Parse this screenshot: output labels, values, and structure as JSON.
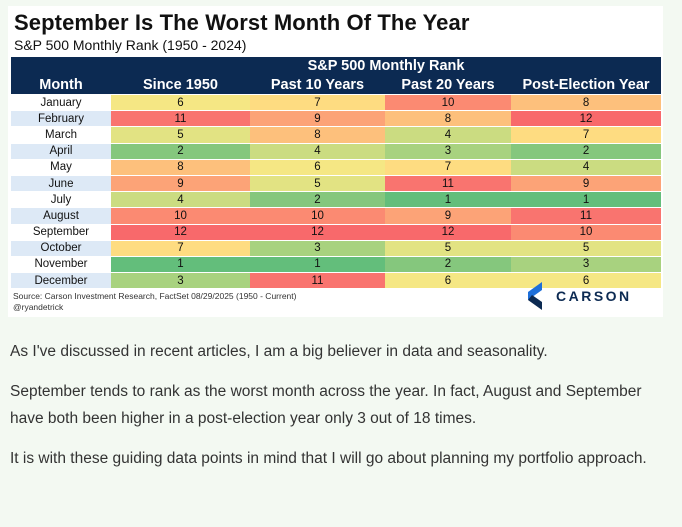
{
  "figure": {
    "title": "September Is The Worst Month Of The Year",
    "subtitle": "S&P 500 Monthly Rank (1950 - 2024)",
    "group_header": "S&P 500 Monthly Rank",
    "columns": [
      "Month",
      "Since 1950",
      "Past 10 Years",
      "Past 20 Years",
      "Post-Election Year"
    ],
    "rows": [
      {
        "month": "January",
        "values": [
          "6",
          "7",
          "10",
          "8"
        ]
      },
      {
        "month": "February",
        "values": [
          "11",
          "9",
          "8",
          "12"
        ]
      },
      {
        "month": "March",
        "values": [
          "5",
          "8",
          "4",
          "7"
        ]
      },
      {
        "month": "April",
        "values": [
          "2",
          "4",
          "3",
          "2"
        ]
      },
      {
        "month": "May",
        "values": [
          "8",
          "6",
          "7",
          "4"
        ]
      },
      {
        "month": "June",
        "values": [
          "9",
          "5",
          "11",
          "9"
        ]
      },
      {
        "month": "July",
        "values": [
          "4",
          "2",
          "1",
          "1"
        ]
      },
      {
        "month": "August",
        "values": [
          "10",
          "10",
          "9",
          "11"
        ]
      },
      {
        "month": "September",
        "values": [
          "12",
          "12",
          "12",
          "10"
        ]
      },
      {
        "month": "October",
        "values": [
          "7",
          "3",
          "5",
          "5"
        ]
      },
      {
        "month": "November",
        "values": [
          "1",
          "1",
          "2",
          "3"
        ]
      },
      {
        "month": "December",
        "values": [
          "3",
          "11",
          "6",
          "6"
        ]
      }
    ],
    "rank_colors": {
      "1": "#63be7b",
      "2": "#85c77d",
      "3": "#a8d27f",
      "4": "#cbdc81",
      "5": "#e2e383",
      "6": "#f5e784",
      "7": "#fedc81",
      "8": "#fdc07c",
      "9": "#fca377",
      "10": "#fb8a72",
      "11": "#f9746f",
      "12": "#f8696b"
    },
    "source_line1": "Source: Carson Investment Research, FactSet 08/29/2025 (1950 - Current)",
    "source_line2": "@ryandetrick",
    "logo_text": "CARSON",
    "logo_color": "#1e6fd9"
  },
  "article": {
    "paragraphs": [
      "As I've discussed in recent articles, I am a big believer in data and seasonality.",
      "September tends to rank as the worst month across the year. In fact, August and September have both been higher in a post-election year only 3 out of 18 times.",
      "It is with these guiding data points in mind that I will go about planning my portfolio approach."
    ]
  }
}
